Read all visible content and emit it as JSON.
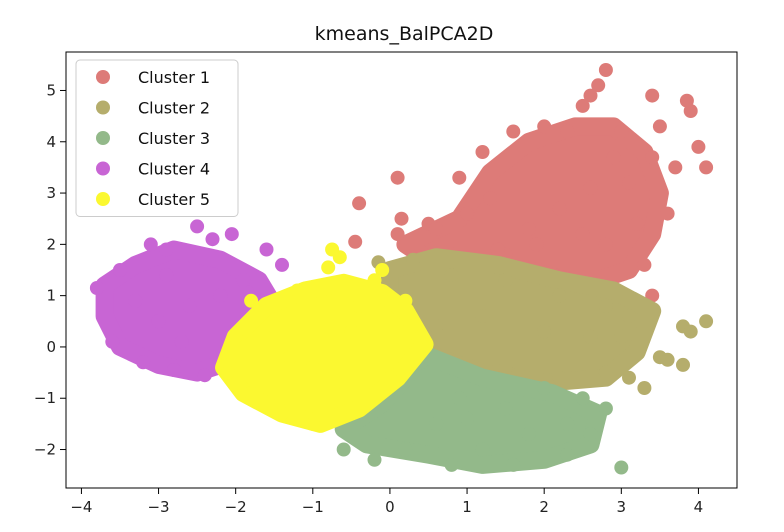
{
  "chart_data": {
    "type": "scatter",
    "title": "kmeans_BalPCA2D",
    "xlabel": "",
    "ylabel": "",
    "xlim": [
      -4.2,
      4.5
    ],
    "ylim": [
      -2.75,
      5.75
    ],
    "xticks": [
      -4,
      -3,
      -2,
      -1,
      0,
      1,
      2,
      3,
      4
    ],
    "yticks": [
      -2,
      -1,
      0,
      1,
      2,
      3,
      4,
      5
    ],
    "xtick_labels": [
      "−4",
      "−3",
      "−2",
      "−1",
      "0",
      "1",
      "2",
      "3",
      "4"
    ],
    "ytick_labels": [
      "−2",
      "−1",
      "0",
      "1",
      "2",
      "3",
      "4",
      "5"
    ],
    "grid": false,
    "legend_position": "top-left",
    "series": [
      {
        "name": "Cluster 1",
        "color": "#dd7b78",
        "points": [
          [
            2.8,
            5.4
          ],
          [
            2.7,
            5.1
          ],
          [
            2.6,
            4.9
          ],
          [
            2.5,
            4.7
          ],
          [
            3.4,
            4.9
          ],
          [
            3.85,
            4.8
          ],
          [
            3.9,
            4.6
          ],
          [
            1.2,
            3.8
          ],
          [
            1.6,
            4.2
          ],
          [
            2.0,
            4.3
          ],
          [
            2.3,
            4.2
          ],
          [
            3.0,
            4.2
          ],
          [
            3.5,
            4.3
          ],
          [
            0.1,
            3.3
          ],
          [
            0.9,
            3.3
          ],
          [
            2.9,
            3.7
          ],
          [
            3.4,
            3.7
          ],
          [
            4.0,
            3.9
          ],
          [
            3.7,
            3.5
          ],
          [
            4.1,
            3.5
          ],
          [
            -0.4,
            2.8
          ],
          [
            0.15,
            2.5
          ],
          [
            0.1,
            2.2
          ],
          [
            -0.45,
            2.05
          ],
          [
            1.5,
            1.8
          ],
          [
            2.5,
            2.2
          ],
          [
            2.8,
            2.0
          ],
          [
            3.3,
            1.6
          ],
          [
            3.4,
            1.0
          ],
          [
            3.6,
            2.6
          ],
          [
            0.5,
            2.4
          ],
          [
            0.6,
            2.3
          ],
          [
            1.8,
            2.3
          ],
          [
            1.0,
            2.6
          ],
          [
            1.3,
            2.9
          ],
          [
            2.2,
            2.7
          ],
          [
            2.6,
            3.1
          ],
          [
            1.9,
            2.0
          ],
          [
            1.4,
            1.9
          ],
          [
            0.8,
            1.8
          ],
          [
            3.2,
            2.4
          ],
          [
            3.1,
            3.2
          ]
        ]
      },
      {
        "name": "Cluster 2",
        "color": "#b5ad6c",
        "points": [
          [
            -0.15,
            1.65
          ],
          [
            0.3,
            1.7
          ],
          [
            0.8,
            1.4
          ],
          [
            1.5,
            1.3
          ],
          [
            2.2,
            1.0
          ],
          [
            2.8,
            0.8
          ],
          [
            3.1,
            0.6
          ],
          [
            3.5,
            -0.2
          ],
          [
            3.8,
            0.4
          ],
          [
            3.9,
            0.3
          ],
          [
            4.1,
            0.5
          ],
          [
            3.8,
            -0.35
          ],
          [
            3.3,
            -0.8
          ],
          [
            3.1,
            -0.6
          ],
          [
            2.8,
            -0.5
          ],
          [
            2.2,
            -0.6
          ],
          [
            1.5,
            -0.4
          ],
          [
            0.6,
            0.4
          ],
          [
            1.2,
            0.6
          ],
          [
            2.0,
            0.3
          ],
          [
            3.6,
            -0.25
          ],
          [
            3.0,
            0.2
          ],
          [
            2.6,
            0.2
          ]
        ]
      },
      {
        "name": "Cluster 3",
        "color": "#93b98a",
        "points": [
          [
            0.4,
            -0.3
          ],
          [
            0.9,
            -1.0
          ],
          [
            1.5,
            -1.2
          ],
          [
            2.0,
            -0.8
          ],
          [
            2.3,
            -1.5
          ],
          [
            1.2,
            -2.0
          ],
          [
            0.8,
            -2.3
          ],
          [
            1.6,
            -2.3
          ],
          [
            2.3,
            -2.1
          ],
          [
            2.6,
            -1.7
          ],
          [
            2.8,
            -1.2
          ],
          [
            3.0,
            -2.35
          ],
          [
            -0.6,
            -2.0
          ],
          [
            -0.2,
            -2.2
          ],
          [
            0.2,
            -2.0
          ],
          [
            0.6,
            -1.5
          ],
          [
            1.0,
            -1.4
          ],
          [
            1.8,
            -1.7
          ],
          [
            2.5,
            -1.0
          ]
        ]
      },
      {
        "name": "Cluster 4",
        "color": "#c865d4",
        "points": [
          [
            -3.8,
            1.15
          ],
          [
            -3.5,
            1.5
          ],
          [
            -3.1,
            2.0
          ],
          [
            -2.9,
            1.9
          ],
          [
            -2.5,
            2.35
          ],
          [
            -2.3,
            2.1
          ],
          [
            -2.05,
            2.2
          ],
          [
            -1.6,
            1.9
          ],
          [
            -1.4,
            1.6
          ],
          [
            -3.6,
            0.1
          ],
          [
            -3.2,
            -0.3
          ],
          [
            -2.8,
            -0.45
          ],
          [
            -2.4,
            -0.55
          ],
          [
            -2.1,
            -0.3
          ],
          [
            -1.8,
            0.6
          ],
          [
            -3.0,
            0.5
          ],
          [
            -2.6,
            0.8
          ],
          [
            -2.2,
            1.0
          ],
          [
            -3.3,
            0.9
          ],
          [
            -2.7,
            0.1
          ],
          [
            -1.9,
            1.3
          ],
          [
            -2.9,
            1.4
          ]
        ]
      },
      {
        "name": "Cluster 5",
        "color": "#fbf830",
        "points": [
          [
            -0.8,
            1.55
          ],
          [
            -0.65,
            1.75
          ],
          [
            -0.75,
            1.9
          ],
          [
            -0.1,
            1.5
          ],
          [
            -1.8,
            0.9
          ],
          [
            -2.0,
            0.2
          ],
          [
            -2.1,
            -0.5
          ],
          [
            -1.8,
            -0.9
          ],
          [
            -1.4,
            -1.3
          ],
          [
            -1.0,
            -1.5
          ],
          [
            -0.5,
            -1.2
          ],
          [
            0.0,
            -0.6
          ],
          [
            0.4,
            0.2
          ],
          [
            0.2,
            0.9
          ],
          [
            -0.2,
            1.3
          ],
          [
            -1.2,
            1.1
          ],
          [
            -1.5,
            0.4
          ],
          [
            -1.0,
            -0.4
          ],
          [
            -0.5,
            0.3
          ],
          [
            -1.3,
            -0.2
          ],
          [
            -0.7,
            -0.7
          ],
          [
            -0.4,
            0.8
          ]
        ]
      }
    ]
  }
}
